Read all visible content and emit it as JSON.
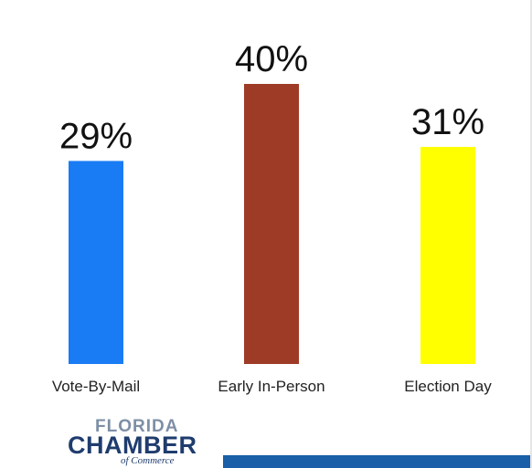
{
  "chart_data": {
    "type": "bar",
    "categories": [
      "Vote-By-Mail",
      "Early In-Person",
      "Election Day"
    ],
    "values": [
      29,
      40,
      31
    ],
    "value_labels": [
      "29%",
      "40%",
      "31%"
    ],
    "colors": [
      "#1a7cf4",
      "#9e3b26",
      "#ffff00"
    ],
    "ylim": [
      0,
      40
    ],
    "grid": false,
    "legend": "none",
    "title": "",
    "xlabel": "",
    "ylabel": ""
  },
  "logo": {
    "line1": "FLORIDA",
    "line2": "CHAMBER",
    "line3": "of Commerce"
  },
  "footer": {
    "bar_color": "#1a5fa8"
  }
}
